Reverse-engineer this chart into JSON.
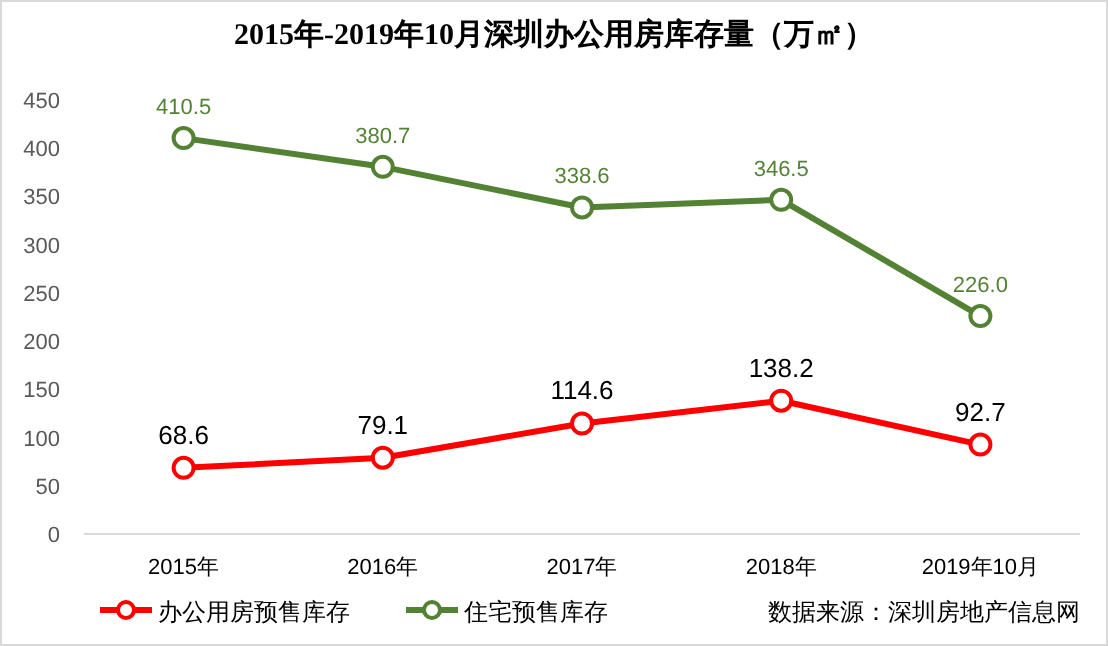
{
  "chart_data": {
    "type": "line",
    "title": "2015年-2019年10月深圳办公用房库存量（万㎡）",
    "categories": [
      "2015年",
      "2016年",
      "2017年",
      "2018年",
      "2019年10月"
    ],
    "series": [
      {
        "name": "办公用房预售库存",
        "color": "#ff0000",
        "values": [
          68.6,
          79.1,
          114.6,
          138.2,
          92.7
        ],
        "value_labels": [
          "68.6",
          "79.1",
          "114.6",
          "138.2",
          "92.7"
        ]
      },
      {
        "name": "住宅预售库存",
        "color": "#548235",
        "values": [
          410.5,
          380.7,
          338.6,
          346.5,
          226.0
        ],
        "value_labels": [
          "410.5",
          "380.7",
          "338.6",
          "346.5",
          "226.0"
        ]
      }
    ],
    "ylim": [
      0,
      450
    ],
    "yticks": [
      0,
      50,
      100,
      150,
      200,
      250,
      300,
      350,
      400,
      450
    ],
    "grid": false,
    "legend": "bottom left",
    "marker": "circle",
    "line_style": "solid",
    "annotations": [
      "数据来源：深圳房地产信息网"
    ]
  }
}
